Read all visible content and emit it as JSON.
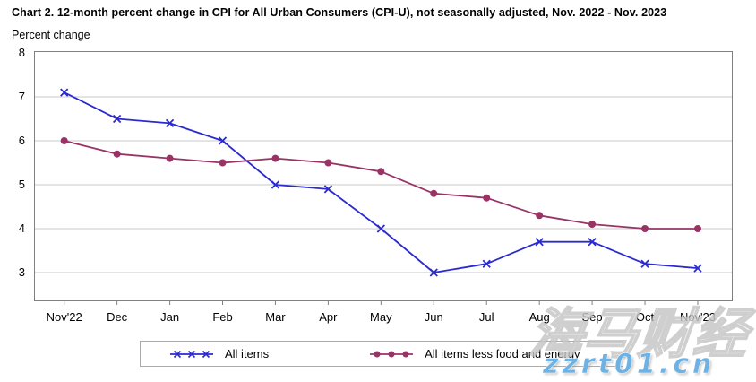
{
  "page": {
    "title": "Chart 2. 12-month percent change in CPI for All Urban Consumers (CPI-U), not seasonally adjusted, Nov. 2022 - Nov. 2023",
    "subtitle": "Percent change"
  },
  "chart_data": {
    "type": "line",
    "title": "Chart 2. 12-month percent change in CPI for All Urban Consumers (CPI-U), not seasonally adjusted, Nov. 2022 - Nov. 2023",
    "xlabel": "",
    "ylabel": "Percent change",
    "categories": [
      "Nov'22",
      "Dec",
      "Jan",
      "Feb",
      "Mar",
      "Apr",
      "May",
      "Jun",
      "Jul",
      "Aug",
      "Sep",
      "Oct",
      "Nov'23"
    ],
    "series": [
      {
        "name": "All items",
        "marker": "x",
        "color": "#2a2ad0",
        "values": [
          7.1,
          6.5,
          6.4,
          6.0,
          5.0,
          4.9,
          4.0,
          3.0,
          3.2,
          3.7,
          3.7,
          3.2,
          3.1
        ]
      },
      {
        "name": "All items less food and energy",
        "marker": "circle",
        "color": "#993366",
        "values": [
          6.0,
          5.7,
          5.6,
          5.5,
          5.6,
          5.5,
          5.3,
          4.8,
          4.7,
          4.3,
          4.1,
          4.0,
          4.0
        ]
      }
    ],
    "y_ticks": [
      8,
      7,
      6,
      5,
      4,
      3
    ],
    "ylim": [
      2.3,
      8
    ],
    "grid": true,
    "legend_position": "bottom",
    "colors": {
      "gridline": "#c9c9c9",
      "plot_border": "#808080"
    }
  },
  "watermark": {
    "cjk_text": "海马财经",
    "url_text": "zzrt01.cn",
    "url_color": "#6cb2e4"
  }
}
